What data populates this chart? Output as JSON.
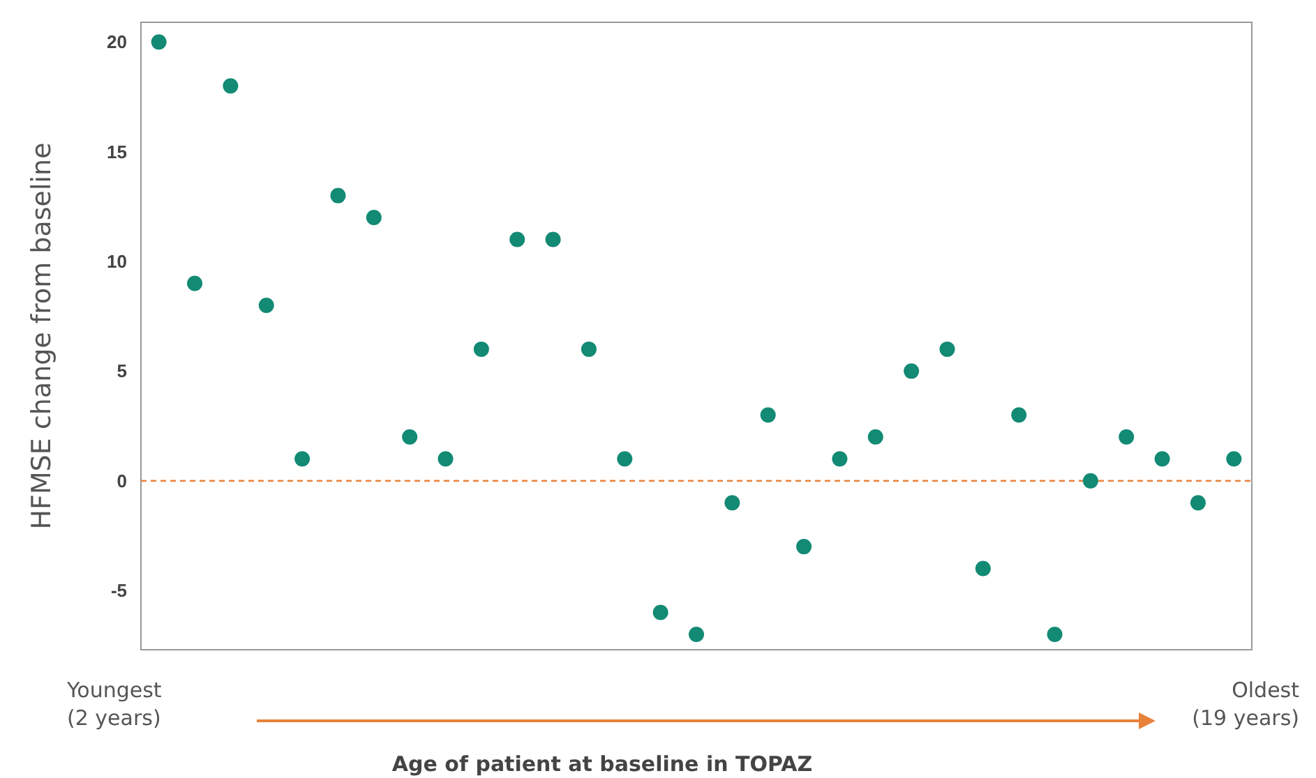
{
  "chart_data": {
    "type": "scatter",
    "xlabel": "Age of patient at baseline in TOPAZ",
    "ylabel": "HFMSE change from baseline",
    "categories": [
      null,
      null,
      null,
      null,
      null,
      null,
      null,
      null,
      null,
      null,
      null,
      null,
      null,
      null,
      null,
      null,
      null,
      null,
      null,
      null,
      null,
      null,
      null,
      null,
      null,
      null,
      null,
      null,
      null,
      null,
      null
    ],
    "series": [
      {
        "color": "#128a74",
        "values": [
          20,
          9,
          18,
          8,
          1,
          13,
          12,
          2,
          1,
          6,
          11,
          11,
          6,
          1,
          -6,
          -7,
          -1,
          3,
          -3,
          1,
          2,
          5,
          6,
          -4,
          3,
          -7,
          0,
          2,
          1,
          -1,
          1
        ]
      }
    ],
    "ylim": [
      -7.7,
      20.9
    ],
    "yticks": [
      -5,
      0,
      5,
      10,
      15,
      20
    ],
    "tick_labels": "y",
    "grid": false,
    "marker": "circle",
    "ref_lines": [
      {
        "axis": "y",
        "value": 0,
        "color": "#e8823a",
        "line_style": "dashed"
      }
    ],
    "annotations": [
      "Youngest\n(2 years)",
      "Oldest\n(19 years)"
    ]
  }
}
